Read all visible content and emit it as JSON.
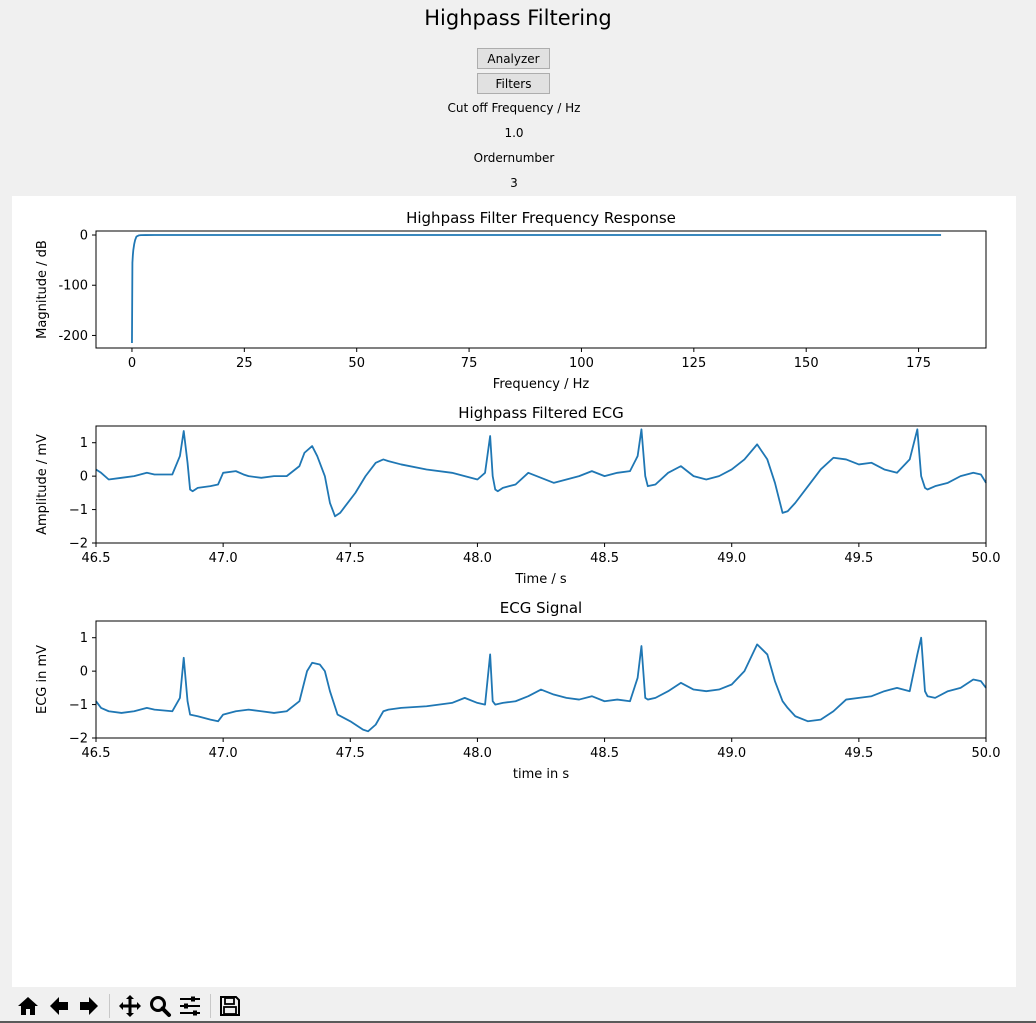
{
  "app": {
    "title": "Highpass Filtering"
  },
  "controls": {
    "analyzer_label": "Analyzer",
    "filters_label": "Filters",
    "cutoff_label": "Cut off Frequency / Hz",
    "cutoff_value": "1.0",
    "order_label": "Ordernumber",
    "order_value": "3"
  },
  "toolbar": {
    "icons": [
      "home-icon",
      "back-arrow-icon",
      "forward-arrow-icon",
      "pan-icon",
      "zoom-icon",
      "subplots-configure-icon",
      "save-icon"
    ]
  },
  "colors": {
    "line": "#1f77b4",
    "background": "#f0f0f0",
    "figure": "#ffffff"
  },
  "chart_data": [
    {
      "type": "line",
      "title": "Highpass Filter Frequency Response",
      "xlabel": "Frequency / Hz",
      "ylabel": "Magnitude / dB",
      "xlim": [
        -8,
        190
      ],
      "ylim": [
        -225,
        8
      ],
      "xticks": [
        0,
        25,
        50,
        75,
        100,
        125,
        150,
        175
      ],
      "yticks": [
        0,
        -100,
        -200
      ],
      "grid": false,
      "series": [
        {
          "x": [
            0,
            0.1,
            0.2,
            0.3,
            0.5,
            0.7,
            1.0,
            1.5,
            2.0,
            3.0,
            5.0,
            10,
            50,
            100,
            150,
            180
          ],
          "values": [
            -215,
            -55,
            -40,
            -30,
            -18,
            -10,
            -3,
            -0.8,
            -0.2,
            -0.05,
            0,
            0,
            0,
            0,
            0,
            0
          ]
        }
      ]
    },
    {
      "type": "line",
      "title": "Highpass Filtered ECG",
      "xlabel": "Time / s",
      "ylabel": "Amplitude / mV",
      "xlim": [
        46.5,
        50.0
      ],
      "ylim": [
        -2,
        1.5
      ],
      "xticks": [
        "46.5",
        "47.0",
        "47.5",
        "48.0",
        "48.5",
        "49.0",
        "49.5",
        "50.0"
      ],
      "yticks": [
        "1",
        "0",
        "−1",
        "−2"
      ],
      "grid": false,
      "series": [
        {
          "x": [
            46.5,
            46.52,
            46.55,
            46.6,
            46.65,
            46.7,
            46.73,
            46.8,
            46.83,
            46.845,
            46.86,
            46.87,
            46.88,
            46.9,
            46.95,
            46.98,
            47.0,
            47.05,
            47.08,
            47.1,
            47.15,
            47.2,
            47.25,
            47.3,
            47.32,
            47.35,
            47.37,
            47.4,
            47.42,
            47.44,
            47.46,
            47.48,
            47.52,
            47.56,
            47.6,
            47.63,
            47.65,
            47.7,
            47.8,
            47.9,
            47.95,
            48.0,
            48.03,
            48.05,
            48.06,
            48.07,
            48.08,
            48.1,
            48.15,
            48.2,
            48.25,
            48.3,
            48.35,
            48.4,
            48.45,
            48.5,
            48.55,
            48.6,
            48.63,
            48.645,
            48.66,
            48.67,
            48.7,
            48.75,
            48.8,
            48.85,
            48.9,
            48.95,
            49.0,
            49.05,
            49.1,
            49.14,
            49.17,
            49.2,
            49.22,
            49.25,
            49.3,
            49.35,
            49.4,
            49.45,
            49.5,
            49.55,
            49.6,
            49.65,
            49.7,
            49.73,
            49.745,
            49.76,
            49.77,
            49.8,
            49.85,
            49.9,
            49.95,
            49.98,
            50.0
          ],
          "values": [
            0.2,
            0.1,
            -0.1,
            -0.05,
            0.0,
            0.1,
            0.05,
            0.05,
            0.6,
            1.35,
            0.4,
            -0.4,
            -0.45,
            -0.35,
            -0.3,
            -0.25,
            0.1,
            0.15,
            0.05,
            0.0,
            -0.05,
            0.0,
            0.0,
            0.3,
            0.7,
            0.9,
            0.6,
            0.0,
            -0.8,
            -1.2,
            -1.1,
            -0.9,
            -0.5,
            0.0,
            0.4,
            0.5,
            0.45,
            0.35,
            0.2,
            0.1,
            0.0,
            -0.1,
            0.1,
            1.2,
            0.0,
            -0.4,
            -0.45,
            -0.35,
            -0.25,
            0.1,
            -0.05,
            -0.2,
            -0.1,
            0.0,
            0.15,
            0.0,
            0.1,
            0.15,
            0.6,
            1.4,
            0.0,
            -0.3,
            -0.25,
            0.1,
            0.3,
            0.0,
            -0.1,
            0.0,
            0.2,
            0.5,
            0.95,
            0.5,
            -0.2,
            -1.1,
            -1.05,
            -0.8,
            -0.3,
            0.2,
            0.55,
            0.5,
            0.35,
            0.4,
            0.2,
            0.1,
            0.5,
            1.4,
            0.0,
            -0.35,
            -0.4,
            -0.3,
            -0.2,
            0.0,
            0.1,
            0.05,
            -0.2
          ]
        }
      ]
    },
    {
      "type": "line",
      "title": "ECG Signal",
      "xlabel": "time in s",
      "ylabel": "ECG in mV",
      "xlim": [
        46.5,
        50.0
      ],
      "ylim": [
        -2,
        1.5
      ],
      "xticks": [
        "46.5",
        "47.0",
        "47.5",
        "48.0",
        "48.5",
        "49.0",
        "49.5",
        "50.0"
      ],
      "yticks": [
        "1",
        "0",
        "−1",
        "−2"
      ],
      "grid": false,
      "series": [
        {
          "x": [
            46.5,
            46.52,
            46.55,
            46.6,
            46.65,
            46.7,
            46.73,
            46.8,
            46.83,
            46.845,
            46.86,
            46.87,
            46.9,
            46.95,
            46.98,
            47.0,
            47.05,
            47.1,
            47.15,
            47.2,
            47.25,
            47.3,
            47.33,
            47.35,
            47.38,
            47.4,
            47.42,
            47.45,
            47.5,
            47.55,
            47.57,
            47.6,
            47.63,
            47.65,
            47.7,
            47.8,
            47.9,
            47.95,
            48.0,
            48.03,
            48.05,
            48.06,
            48.07,
            48.1,
            48.15,
            48.2,
            48.25,
            48.3,
            48.35,
            48.4,
            48.45,
            48.5,
            48.55,
            48.6,
            48.63,
            48.645,
            48.66,
            48.67,
            48.7,
            48.75,
            48.8,
            48.85,
            48.9,
            48.95,
            49.0,
            49.05,
            49.1,
            49.14,
            49.17,
            49.2,
            49.22,
            49.25,
            49.3,
            49.35,
            49.4,
            49.45,
            49.5,
            49.55,
            49.6,
            49.65,
            49.7,
            49.73,
            49.745,
            49.76,
            49.77,
            49.8,
            49.85,
            49.9,
            49.95,
            49.98,
            50.0
          ],
          "values": [
            -0.9,
            -1.1,
            -1.2,
            -1.25,
            -1.2,
            -1.1,
            -1.15,
            -1.2,
            -0.8,
            0.4,
            -0.9,
            -1.3,
            -1.35,
            -1.45,
            -1.5,
            -1.3,
            -1.2,
            -1.15,
            -1.2,
            -1.25,
            -1.2,
            -0.9,
            0.0,
            0.25,
            0.2,
            0.0,
            -0.6,
            -1.3,
            -1.5,
            -1.75,
            -1.8,
            -1.6,
            -1.2,
            -1.15,
            -1.1,
            -1.05,
            -0.95,
            -0.8,
            -0.95,
            -1.0,
            0.5,
            -0.9,
            -1.0,
            -0.95,
            -0.9,
            -0.75,
            -0.55,
            -0.7,
            -0.8,
            -0.85,
            -0.75,
            -0.9,
            -0.85,
            -0.9,
            -0.2,
            0.75,
            -0.8,
            -0.85,
            -0.8,
            -0.6,
            -0.35,
            -0.55,
            -0.6,
            -0.55,
            -0.4,
            0.0,
            0.8,
            0.5,
            -0.3,
            -0.9,
            -1.1,
            -1.35,
            -1.5,
            -1.45,
            -1.2,
            -0.85,
            -0.8,
            -0.75,
            -0.6,
            -0.5,
            -0.6,
            0.5,
            1.0,
            -0.6,
            -0.75,
            -0.8,
            -0.6,
            -0.5,
            -0.25,
            -0.3,
            -0.5
          ]
        }
      ]
    }
  ]
}
